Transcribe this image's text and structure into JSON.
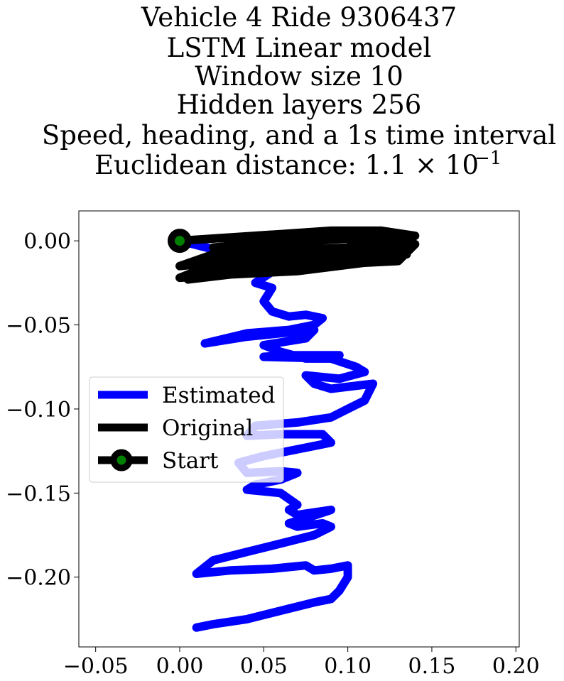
{
  "chart_data": {
    "type": "line",
    "title_lines": [
      "Vehicle 4 Ride 9306437",
      "LSTM Linear model",
      "Window size 10",
      "Hidden layers 256",
      "Speed, heading, and a 1s time interval",
      "Euclidean distance: 1.1 × 10",
      "−1"
    ],
    "xlabel": "",
    "ylabel": "",
    "xlim": [
      -0.06,
      0.202
    ],
    "ylim": [
      -0.2415,
      0.0178
    ],
    "xticks": [
      -0.05,
      0.0,
      0.05,
      0.1,
      0.15,
      0.2
    ],
    "xtick_labels": [
      "−0.05",
      "0.00",
      "0.05",
      "0.10",
      "0.15",
      "0.20"
    ],
    "yticks": [
      0.0,
      -0.05,
      -0.1,
      -0.15,
      -0.2
    ],
    "ytick_labels": [
      "0.00",
      "−0.05",
      "−0.10",
      "−0.15",
      "−0.20"
    ],
    "grid": false,
    "legend": {
      "placement": "center-left",
      "entries": [
        "Estimated",
        "Original",
        "Start"
      ]
    },
    "colors": {
      "estimated": "#0000ff",
      "original": "#000000",
      "start_marker": "#008000",
      "start_edge": "#000000"
    },
    "series": [
      {
        "name": "Estimated",
        "x": [
          0.0,
          0.02,
          0.05,
          0.06,
          0.045,
          0.055,
          0.05,
          0.055,
          0.065,
          0.075,
          0.085,
          0.08,
          0.065,
          0.04,
          0.015,
          0.04,
          0.07,
          0.08,
          0.075,
          0.05,
          0.06,
          0.075,
          0.09,
          0.095,
          0.065,
          0.05,
          0.09,
          0.105,
          0.11,
          0.095,
          0.075,
          0.08,
          0.09,
          0.115,
          0.11,
          0.1,
          0.09,
          0.07,
          0.045,
          0.04,
          0.06,
          0.085,
          0.09,
          0.075,
          0.05,
          0.035,
          0.04,
          0.06,
          0.07,
          0.06,
          0.045,
          0.04,
          0.06,
          0.07,
          0.065,
          0.07,
          0.09,
          0.075,
          0.065,
          0.07,
          0.085,
          0.09,
          0.08,
          0.06,
          0.04,
          0.02,
          0.01,
          0.03,
          0.055,
          0.075,
          0.08,
          0.09,
          0.1,
          0.1,
          0.095,
          0.09,
          0.08,
          0.06,
          0.04,
          0.02,
          0.01
        ],
        "y": [
          0.0,
          -0.005,
          -0.008,
          -0.015,
          -0.025,
          -0.028,
          -0.036,
          -0.042,
          -0.045,
          -0.044,
          -0.046,
          -0.05,
          -0.053,
          -0.055,
          -0.061,
          -0.057,
          -0.054,
          -0.053,
          -0.058,
          -0.062,
          -0.066,
          -0.07,
          -0.07,
          -0.068,
          -0.068,
          -0.069,
          -0.07,
          -0.075,
          -0.078,
          -0.082,
          -0.08,
          -0.085,
          -0.088,
          -0.085,
          -0.095,
          -0.1,
          -0.105,
          -0.108,
          -0.11,
          -0.116,
          -0.115,
          -0.115,
          -0.12,
          -0.123,
          -0.128,
          -0.132,
          -0.138,
          -0.137,
          -0.138,
          -0.142,
          -0.145,
          -0.148,
          -0.15,
          -0.157,
          -0.16,
          -0.163,
          -0.16,
          -0.165,
          -0.168,
          -0.17,
          -0.168,
          -0.17,
          -0.175,
          -0.18,
          -0.185,
          -0.19,
          -0.198,
          -0.196,
          -0.195,
          -0.193,
          -0.196,
          -0.195,
          -0.193,
          -0.2,
          -0.208,
          -0.213,
          -0.215,
          -0.22,
          -0.225,
          -0.228,
          -0.23
        ]
      },
      {
        "name": "Original",
        "x": [
          0.0,
          0.03,
          0.06,
          0.09,
          0.12,
          0.14,
          0.13,
          0.1,
          0.06,
          0.02,
          0.0,
          0.03,
          0.07,
          0.11,
          0.14,
          0.13,
          0.09,
          0.05,
          0.01,
          0.0,
          0.04,
          0.08,
          0.12,
          0.135,
          0.11,
          0.07,
          0.03,
          0.005,
          0.03,
          0.065,
          0.1,
          0.12,
          0.09,
          0.05,
          0.02,
          0.04,
          0.08,
          0.11,
          0.1,
          0.07,
          0.04,
          0.06,
          0.09,
          0.12,
          0.14,
          0.12,
          0.085,
          0.06
        ],
        "y": [
          0.0,
          0.002,
          0.004,
          0.006,
          0.006,
          0.003,
          -0.002,
          -0.004,
          -0.006,
          -0.008,
          -0.015,
          -0.012,
          -0.01,
          -0.008,
          -0.002,
          -0.012,
          -0.014,
          -0.016,
          -0.018,
          -0.022,
          -0.019,
          -0.016,
          -0.012,
          -0.008,
          -0.013,
          -0.018,
          -0.02,
          -0.023,
          -0.02,
          -0.016,
          -0.012,
          -0.01,
          -0.008,
          -0.006,
          -0.004,
          -0.002,
          0.0,
          0.002,
          -0.004,
          -0.01,
          -0.015,
          -0.013,
          -0.01,
          -0.006,
          -0.002,
          0.001,
          0.004,
          0.0
        ]
      }
    ],
    "start_point": {
      "name": "Start",
      "x": 0.0,
      "y": 0.0
    }
  }
}
